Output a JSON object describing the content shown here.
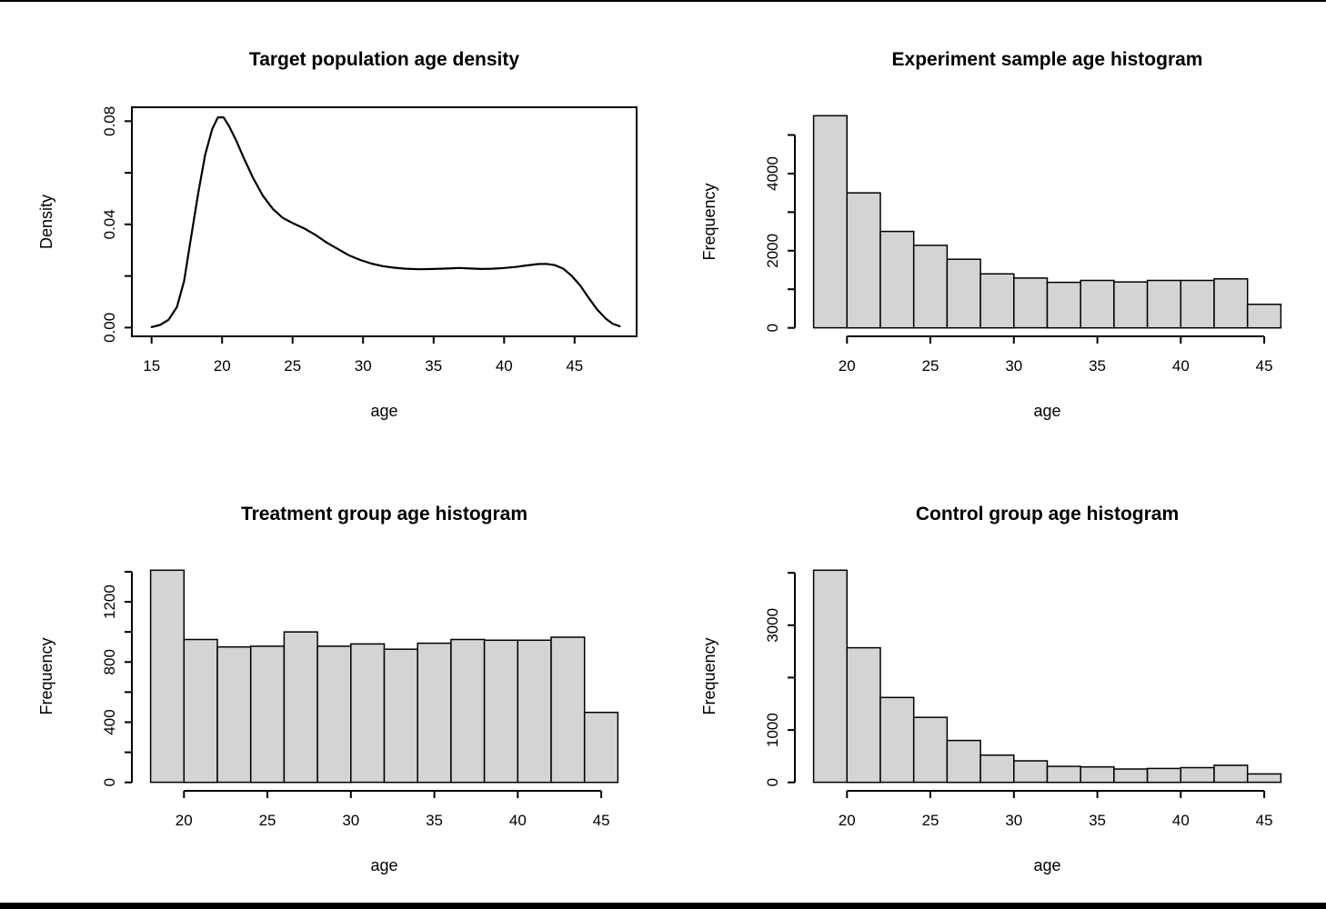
{
  "figure": {
    "background": "#ffffff",
    "bar_fill": "#d4d4d4",
    "line_color": "#000000",
    "top_border_color": "#000000",
    "bottom_bar_color": "#000000",
    "layout": "2x2 grid of R base-graphics plots"
  },
  "chart_data": [
    {
      "id": "target-density",
      "type": "line",
      "title": "Target population age density",
      "xlabel": "age",
      "ylabel": "Density",
      "x_ticks": [
        15,
        20,
        25,
        30,
        35,
        40,
        45
      ],
      "x_tick_labels": [
        "15",
        "20",
        "25",
        "30",
        "35",
        "40",
        "45"
      ],
      "y_ticks": [
        0,
        0.02,
        0.04,
        0.06,
        0.08
      ],
      "y_tick_labels": [
        "0.00",
        "",
        "0.04",
        "",
        "0.08"
      ],
      "xlim": [
        13.6,
        49.4
      ],
      "ylim": [
        -0.0034,
        0.0854
      ],
      "grid": false,
      "legend": "none",
      "box": true,
      "points": [
        [
          15.0,
          0.0002
        ],
        [
          15.6,
          0.001
        ],
        [
          16.2,
          0.003
        ],
        [
          16.8,
          0.008
        ],
        [
          17.3,
          0.018
        ],
        [
          17.8,
          0.035
        ],
        [
          18.3,
          0.052
        ],
        [
          18.8,
          0.067
        ],
        [
          19.3,
          0.077
        ],
        [
          19.7,
          0.0815
        ],
        [
          20.1,
          0.0815
        ],
        [
          20.5,
          0.078
        ],
        [
          21.0,
          0.0725
        ],
        [
          21.6,
          0.065
        ],
        [
          22.2,
          0.058
        ],
        [
          22.9,
          0.051
        ],
        [
          23.6,
          0.046
        ],
        [
          24.3,
          0.0425
        ],
        [
          25.0,
          0.0405
        ],
        [
          25.8,
          0.0385
        ],
        [
          26.6,
          0.036
        ],
        [
          27.4,
          0.033
        ],
        [
          28.2,
          0.0305
        ],
        [
          29.0,
          0.028
        ],
        [
          29.8,
          0.0262
        ],
        [
          30.6,
          0.0248
        ],
        [
          31.4,
          0.0238
        ],
        [
          32.2,
          0.0232
        ],
        [
          33.0,
          0.0228
        ],
        [
          34.0,
          0.0226
        ],
        [
          35.0,
          0.0227
        ],
        [
          36.0,
          0.0229
        ],
        [
          36.8,
          0.0231
        ],
        [
          37.6,
          0.0229
        ],
        [
          38.4,
          0.0227
        ],
        [
          39.2,
          0.0228
        ],
        [
          40.0,
          0.0231
        ],
        [
          40.8,
          0.0235
        ],
        [
          41.6,
          0.0241
        ],
        [
          42.4,
          0.0246
        ],
        [
          43.0,
          0.0247
        ],
        [
          43.6,
          0.0242
        ],
        [
          44.2,
          0.0228
        ],
        [
          44.8,
          0.02
        ],
        [
          45.4,
          0.0163
        ],
        [
          46.0,
          0.0115
        ],
        [
          46.6,
          0.007
        ],
        [
          47.2,
          0.0035
        ],
        [
          47.7,
          0.0015
        ],
        [
          48.2,
          0.0005
        ]
      ]
    },
    {
      "id": "experiment-histogram",
      "type": "bar",
      "title": "Experiment sample age histogram",
      "xlabel": "age",
      "ylabel": "Frequency",
      "bin_start": 18,
      "bin_width": 2,
      "categories": [
        "18-20",
        "20-22",
        "22-24",
        "24-26",
        "26-28",
        "28-30",
        "30-32",
        "32-34",
        "34-36",
        "36-38",
        "38-40",
        "40-42",
        "42-44",
        "44-46"
      ],
      "values": [
        5500,
        3500,
        2500,
        2140,
        1780,
        1400,
        1290,
        1180,
        1230,
        1190,
        1230,
        1230,
        1270,
        610
      ],
      "x_ticks": [
        20,
        25,
        30,
        35,
        40,
        45
      ],
      "x_tick_labels": [
        "20",
        "25",
        "30",
        "35",
        "40",
        "45"
      ],
      "y_ticks": [
        0,
        1000,
        2000,
        3000,
        4000,
        5000
      ],
      "y_tick_labels": [
        "0",
        "",
        "2000",
        "",
        "4000",
        ""
      ],
      "xlim": [
        16.88,
        47.12
      ],
      "ylim": [
        -220,
        5720
      ],
      "grid": false,
      "legend": "none"
    },
    {
      "id": "treatment-histogram",
      "type": "bar",
      "title": "Treatment group age histogram",
      "xlabel": "age",
      "ylabel": "Frequency",
      "bin_start": 18,
      "bin_width": 2,
      "categories": [
        "18-20",
        "20-22",
        "22-24",
        "24-26",
        "26-28",
        "28-30",
        "30-32",
        "32-34",
        "34-36",
        "36-38",
        "38-40",
        "40-42",
        "42-44",
        "44-46"
      ],
      "values": [
        1410,
        950,
        900,
        905,
        1000,
        905,
        920,
        885,
        925,
        950,
        945,
        945,
        965,
        465
      ],
      "x_ticks": [
        20,
        25,
        30,
        35,
        40,
        45
      ],
      "x_tick_labels": [
        "20",
        "25",
        "30",
        "35",
        "40",
        "45"
      ],
      "y_ticks": [
        0,
        200,
        400,
        600,
        800,
        1000,
        1200,
        1400
      ],
      "y_tick_labels": [
        "0",
        "",
        "400",
        "",
        "800",
        "",
        "1200",
        ""
      ],
      "xlim": [
        16.88,
        47.12
      ],
      "ylim": [
        -56.4,
        1466.4
      ],
      "grid": false,
      "legend": "none"
    },
    {
      "id": "control-histogram",
      "type": "bar",
      "title": "Control group age histogram",
      "xlabel": "age",
      "ylabel": "Frequency",
      "bin_start": 18,
      "bin_width": 2,
      "categories": [
        "18-20",
        "20-22",
        "22-24",
        "24-26",
        "26-28",
        "28-30",
        "30-32",
        "32-34",
        "34-36",
        "36-38",
        "38-40",
        "40-42",
        "42-44",
        "44-46"
      ],
      "values": [
        4050,
        2570,
        1620,
        1240,
        800,
        520,
        410,
        305,
        295,
        255,
        265,
        280,
        325,
        160
      ],
      "x_ticks": [
        20,
        25,
        30,
        35,
        40,
        45
      ],
      "x_tick_labels": [
        "20",
        "25",
        "30",
        "35",
        "40",
        "45"
      ],
      "y_ticks": [
        0,
        1000,
        2000,
        3000,
        4000
      ],
      "y_tick_labels": [
        "0",
        "1000",
        "",
        "3000",
        ""
      ],
      "xlim": [
        16.88,
        47.12
      ],
      "ylim": [
        -162,
        4212
      ],
      "grid": false,
      "legend": "none"
    }
  ]
}
